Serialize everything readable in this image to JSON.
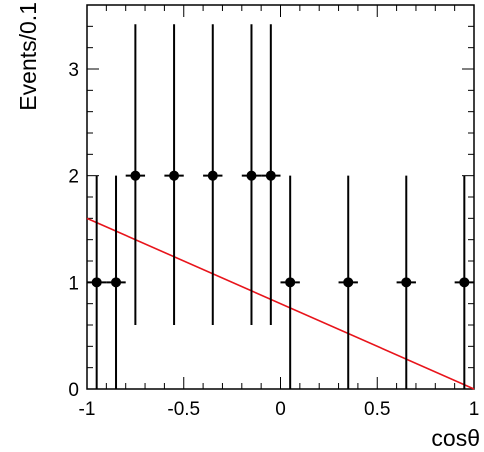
{
  "chart_data": {
    "type": "scatter",
    "title": "",
    "xlabel": "cosθ",
    "ylabel": "Events/0.1",
    "xlim": [
      -1,
      1
    ],
    "ylim": [
      0,
      3.6
    ],
    "x_ticks": [
      -1,
      -0.5,
      0,
      0.5,
      1
    ],
    "x_tick_labels": [
      "-1",
      "-0.5",
      "0",
      "0.5",
      "1"
    ],
    "y_ticks": [
      0,
      1,
      2,
      3
    ],
    "y_tick_labels": [
      "0",
      "1",
      "2",
      "3"
    ],
    "grid": false,
    "series": [
      {
        "type": "errorbar",
        "x": [
          -0.95,
          -0.85,
          -0.75,
          -0.55,
          -0.35,
          -0.15,
          -0.05,
          0.05,
          0.35,
          0.65,
          0.95
        ],
        "y": [
          1,
          1,
          2,
          2,
          2,
          2,
          2,
          1,
          1,
          1,
          1
        ],
        "x_err": [
          0.05,
          0.05,
          0.05,
          0.05,
          0.05,
          0.05,
          0.05,
          0.05,
          0.05,
          0.05,
          0.05
        ],
        "y_low": [
          0,
          0,
          0.6,
          0.6,
          0.6,
          0.6,
          0.6,
          0,
          0,
          0,
          0
        ],
        "y_high": [
          2,
          2,
          3.42,
          3.42,
          3.42,
          3.42,
          3.42,
          2,
          2,
          2,
          2
        ],
        "color": "#000000"
      },
      {
        "type": "line",
        "x": [
          -1,
          1
        ],
        "y": [
          1.6,
          0
        ],
        "color": "#e8141b"
      }
    ]
  }
}
